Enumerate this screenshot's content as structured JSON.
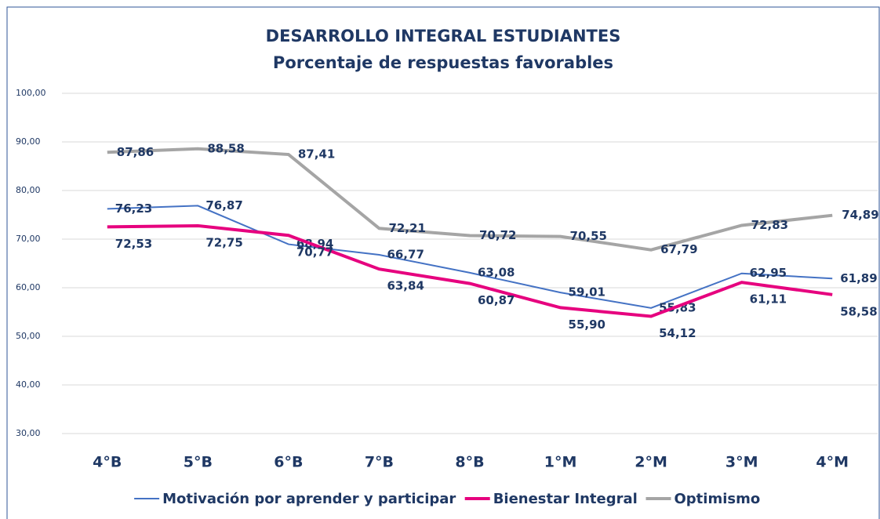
{
  "chart_data": {
    "type": "line",
    "title": "DESARROLLO INTEGRAL ESTUDIANTES",
    "subtitle": "Porcentaje de respuestas favorables",
    "categories": [
      "4°B",
      "5°B",
      "6°B",
      "7°B",
      "8°B",
      "1°M",
      "2°M",
      "3°M",
      "4°M"
    ],
    "series": [
      {
        "name": "Motivación por aprender y participar",
        "color": "#4472c4",
        "values": [
          76.23,
          76.87,
          68.94,
          66.77,
          63.08,
          59.01,
          55.83,
          62.95,
          61.89
        ],
        "value_labels": [
          "76,23",
          "76,87",
          "68,94",
          "66,77",
          "63,08",
          "59,01",
          "55,83",
          "62,95",
          "61,89"
        ]
      },
      {
        "name": "Bienestar Integral",
        "color": "#e6007e",
        "values": [
          72.53,
          72.75,
          70.77,
          63.84,
          60.87,
          55.9,
          54.12,
          61.11,
          58.58
        ],
        "value_labels": [
          "72,53",
          "72,75",
          "70,77",
          "63,84",
          "60,87",
          "55,90",
          "54,12",
          "61,11",
          "58,58"
        ]
      },
      {
        "name": "Optimismo",
        "color": "#a5a5a5",
        "values": [
          87.86,
          88.58,
          87.41,
          72.21,
          70.72,
          70.55,
          67.79,
          72.83,
          74.89
        ],
        "value_labels": [
          "87,86",
          "88,58",
          "87,41",
          "72,21",
          "70,72",
          "70,55",
          "67,79",
          "72,83",
          "74,89"
        ]
      }
    ],
    "ylim": [
      30,
      100
    ],
    "yticks": [
      {
        "value": 30,
        "label": "30,00"
      },
      {
        "value": 40,
        "label": "40,00"
      },
      {
        "value": 50,
        "label": "50,00"
      },
      {
        "value": 60,
        "label": "60,00"
      },
      {
        "value": 70,
        "label": "70,00"
      },
      {
        "value": 80,
        "label": "80,00"
      },
      {
        "value": 90,
        "label": "90,00"
      },
      {
        "value": 100,
        "label": "100,00"
      }
    ],
    "grid": true,
    "legend": "bottom"
  }
}
